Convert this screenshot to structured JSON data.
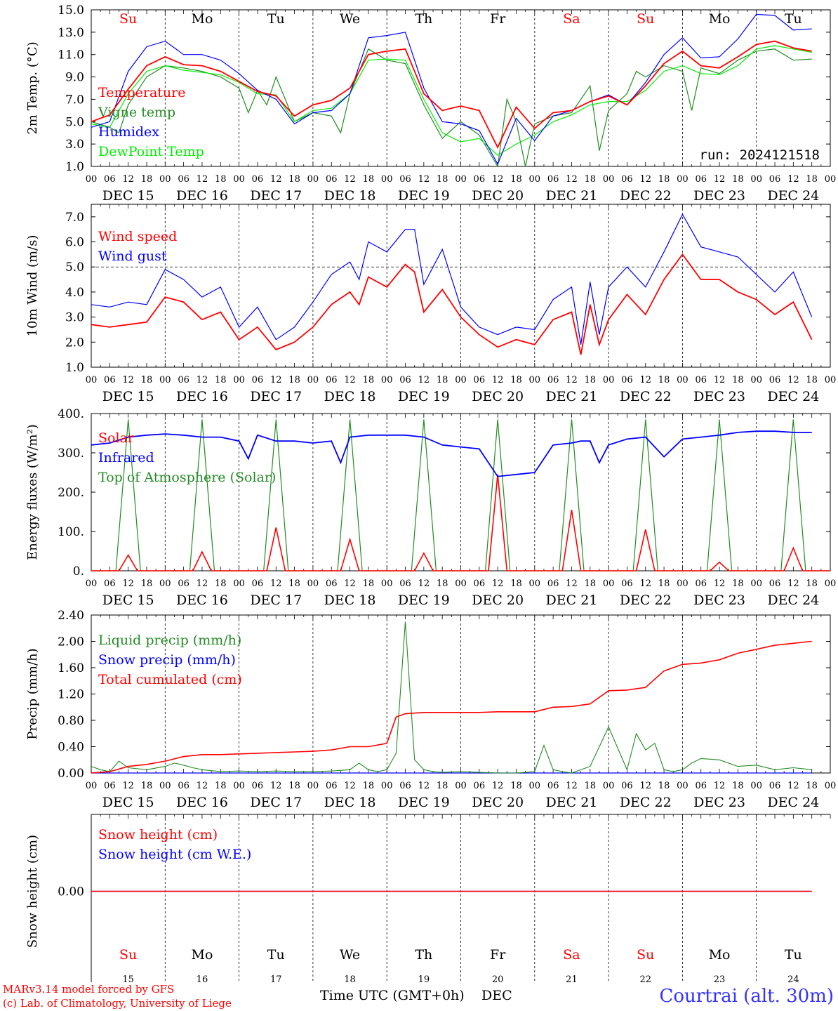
{
  "colors": {
    "temperature": "#ff0000",
    "vigne": "#228b22",
    "humidex": "#0000ff",
    "dewpoint": "#00ee00",
    "axis": "#000000",
    "station": "#3333ff"
  },
  "days": {
    "names": [
      "Su",
      "Mo",
      "Tu",
      "We",
      "Th",
      "Fr",
      "Sa",
      "Su",
      "Mo",
      "Tu"
    ],
    "weekend": [
      true,
      false,
      false,
      false,
      false,
      false,
      true,
      true,
      false,
      false
    ],
    "dates": [
      "DEC 15",
      "DEC 16",
      "DEC 17",
      "DEC 18",
      "DEC 19",
      "DEC 20",
      "DEC 21",
      "DEC 22",
      "DEC 23",
      "DEC 24"
    ],
    "nums": [
      "15",
      "16",
      "17",
      "18",
      "19",
      "20",
      "21",
      "22",
      "23",
      "24"
    ],
    "hours": [
      "00",
      "06",
      "12",
      "18"
    ],
    "hours_last": "00"
  },
  "footer": {
    "model_line1": "MARv3.14 model forced by GFS",
    "model_line2": "(c) Lab. of Climatology, University of Liege",
    "time_label": "Time UTC (GMT+0h)",
    "month": "DEC",
    "station": "Courtrai (alt. 30m)"
  },
  "chart_data": [
    {
      "type": "line",
      "ylabel": "2m Temp. (°C)",
      "ylim": [
        1.0,
        15.0
      ],
      "yticks": [
        "1.0",
        "3.0",
        "5.0",
        "7.0",
        "9.0",
        "11.0",
        "13.0",
        "15.0"
      ],
      "annotation": "run: 2024121518",
      "x_units": "hours since DEC 15 00 UTC",
      "series": [
        {
          "name": "Temperature",
          "color": "#ff0000",
          "x": [
            0,
            6,
            12,
            18,
            24,
            30,
            36,
            42,
            48,
            54,
            60,
            66,
            72,
            78,
            84,
            90,
            96,
            102,
            108,
            114,
            120,
            126,
            132,
            138,
            144,
            150,
            156,
            162,
            168,
            174,
            180,
            186,
            192,
            198,
            204,
            210,
            216,
            222,
            228,
            234
          ],
          "values": [
            5.0,
            5.6,
            7.9,
            10.0,
            10.8,
            10.1,
            10.0,
            9.5,
            8.6,
            7.7,
            7.3,
            5.5,
            6.5,
            6.9,
            8.0,
            11.0,
            11.3,
            11.5,
            7.5,
            6.0,
            6.4,
            6.0,
            2.7,
            6.3,
            4.4,
            5.8,
            6.0,
            6.8,
            7.3,
            6.5,
            8.2,
            10.2,
            11.3,
            10.0,
            9.8,
            10.8,
            11.9,
            12.2,
            11.6,
            11.3
          ]
        },
        {
          "name": "Vigne temp",
          "color": "#228b22",
          "x": [
            0,
            6,
            9,
            12,
            18,
            24,
            30,
            36,
            42,
            48,
            51,
            54,
            57,
            60,
            66,
            72,
            78,
            81,
            84,
            90,
            96,
            102,
            108,
            114,
            120,
            126,
            132,
            135,
            138,
            141,
            144,
            150,
            156,
            162,
            165,
            168,
            174,
            177,
            180,
            186,
            192,
            195,
            198,
            204,
            210,
            216,
            222,
            228,
            234
          ],
          "values": [
            5.0,
            4.5,
            4.0,
            6.5,
            9.0,
            10.0,
            9.8,
            9.5,
            9.0,
            8.0,
            5.8,
            7.8,
            6.5,
            9.0,
            5.0,
            5.8,
            5.5,
            4.0,
            7.5,
            11.5,
            10.5,
            10.2,
            6.5,
            3.5,
            5.0,
            3.8,
            0.5,
            7.0,
            5.0,
            1.0,
            4.8,
            5.5,
            5.8,
            8.2,
            2.4,
            6.0,
            7.5,
            9.5,
            9.0,
            10.0,
            9.5,
            6.0,
            9.8,
            9.3,
            10.5,
            11.3,
            11.5,
            10.5,
            10.6
          ]
        },
        {
          "name": "Humidex",
          "color": "#0000ff",
          "x": [
            0,
            6,
            12,
            18,
            24,
            30,
            36,
            42,
            48,
            54,
            60,
            66,
            72,
            78,
            84,
            90,
            96,
            102,
            108,
            114,
            120,
            126,
            132,
            138,
            144,
            150,
            156,
            162,
            168,
            174,
            180,
            186,
            192,
            198,
            204,
            210,
            216,
            222,
            228,
            234
          ],
          "values": [
            4.5,
            5.0,
            9.5,
            11.7,
            12.2,
            11.0,
            11.0,
            10.5,
            9.3,
            7.8,
            7.0,
            4.8,
            5.8,
            6.0,
            7.5,
            12.5,
            12.7,
            13.0,
            8.0,
            5.0,
            4.8,
            4.2,
            1.2,
            5.3,
            3.3,
            5.5,
            6.0,
            6.8,
            7.4,
            6.5,
            8.5,
            11.0,
            12.5,
            10.7,
            10.8,
            12.4,
            14.6,
            14.5,
            13.2,
            13.3
          ]
        },
        {
          "name": "DewPoint Temp",
          "color": "#00ee00",
          "x": [
            0,
            6,
            12,
            18,
            24,
            30,
            36,
            42,
            48,
            54,
            60,
            66,
            72,
            78,
            84,
            90,
            96,
            102,
            108,
            114,
            120,
            126,
            132,
            138,
            144,
            150,
            156,
            162,
            168,
            174,
            180,
            186,
            192,
            198,
            204,
            210,
            216,
            222,
            228,
            234
          ],
          "values": [
            4.8,
            4.5,
            7.5,
            9.5,
            10.0,
            9.6,
            9.4,
            9.2,
            8.5,
            7.5,
            7.4,
            5.0,
            6.0,
            6.2,
            7.5,
            10.5,
            10.6,
            10.5,
            7.0,
            4.0,
            3.2,
            3.5,
            2.0,
            3.0,
            3.8,
            5.0,
            5.6,
            6.5,
            6.8,
            6.8,
            7.8,
            9.5,
            10.0,
            9.3,
            9.2,
            10.0,
            11.5,
            11.8,
            11.5,
            11.2
          ]
        }
      ]
    },
    {
      "type": "line",
      "ylabel": "10m Wind (m/s)",
      "ylim": [
        1.0,
        7.5
      ],
      "yticks": [
        "1.0",
        "2.0",
        "3.0",
        "4.0",
        "5.0",
        "6.0",
        "7.0"
      ],
      "reference_line": 5.0,
      "series": [
        {
          "name": "Wind speed",
          "color": "#ff0000",
          "x": [
            0,
            6,
            12,
            18,
            24,
            30,
            36,
            42,
            48,
            54,
            60,
            66,
            72,
            78,
            84,
            87,
            90,
            96,
            102,
            105,
            108,
            114,
            120,
            126,
            132,
            138,
            144,
            150,
            156,
            159,
            162,
            165,
            168,
            174,
            180,
            186,
            192,
            198,
            204,
            210,
            216,
            222,
            228,
            234
          ],
          "values": [
            2.7,
            2.6,
            2.7,
            2.8,
            3.8,
            3.6,
            2.9,
            3.2,
            2.1,
            2.6,
            1.7,
            2.0,
            2.6,
            3.5,
            4.0,
            3.5,
            4.6,
            4.2,
            5.1,
            4.8,
            3.2,
            4.1,
            3.0,
            2.3,
            1.8,
            2.1,
            1.9,
            2.9,
            3.2,
            1.5,
            3.5,
            1.9,
            2.9,
            3.9,
            3.1,
            4.5,
            5.5,
            4.5,
            4.5,
            4.0,
            3.7,
            3.1,
            3.6,
            2.1
          ]
        },
        {
          "name": "Wind gust",
          "color": "#0000ff",
          "x": [
            0,
            6,
            12,
            18,
            24,
            30,
            36,
            42,
            48,
            54,
            60,
            66,
            72,
            78,
            84,
            87,
            90,
            96,
            102,
            105,
            108,
            114,
            120,
            126,
            132,
            138,
            144,
            150,
            156,
            159,
            162,
            165,
            168,
            174,
            180,
            186,
            192,
            198,
            204,
            210,
            216,
            222,
            228,
            234
          ],
          "values": [
            3.5,
            3.4,
            3.6,
            3.5,
            4.9,
            4.5,
            3.8,
            4.2,
            2.6,
            3.4,
            2.1,
            2.6,
            3.6,
            4.7,
            5.2,
            4.5,
            6.0,
            5.6,
            6.5,
            6.5,
            4.3,
            5.7,
            3.4,
            2.6,
            2.3,
            2.6,
            2.5,
            3.7,
            4.2,
            1.9,
            4.4,
            2.3,
            4.2,
            5.0,
            4.2,
            5.6,
            7.1,
            5.8,
            5.6,
            5.4,
            4.7,
            4.0,
            4.8,
            3.0
          ]
        }
      ]
    },
    {
      "type": "line",
      "ylabel": "Energy fluxes (W/m²)",
      "ylim": [
        0,
        400
      ],
      "yticks": [
        "0.",
        "100.",
        "200.",
        "300.",
        "400."
      ],
      "series": [
        {
          "name": "Solar",
          "color": "#ff0000",
          "peaks": [
            40,
            48,
            110,
            80,
            45,
            245,
            155,
            105,
            22,
            58
          ]
        },
        {
          "name": "Infrared",
          "color": "#0000ff",
          "x": [
            0,
            6,
            12,
            18,
            24,
            30,
            36,
            42,
            48,
            51,
            54,
            60,
            66,
            72,
            78,
            81,
            84,
            90,
            96,
            102,
            108,
            114,
            120,
            126,
            132,
            138,
            144,
            150,
            156,
            159,
            162,
            165,
            168,
            174,
            180,
            186,
            192,
            198,
            204,
            210,
            216,
            222,
            228,
            234
          ],
          "values": [
            320,
            325,
            340,
            345,
            348,
            345,
            340,
            340,
            330,
            285,
            345,
            330,
            330,
            325,
            330,
            275,
            340,
            345,
            345,
            345,
            340,
            320,
            315,
            310,
            240,
            245,
            250,
            320,
            325,
            330,
            330,
            275,
            320,
            335,
            340,
            290,
            335,
            340,
            345,
            352,
            355,
            355,
            352,
            352
          ]
        },
        {
          "name": "Top of Atmosphere (Solar)",
          "color": "#228b22",
          "peak": 385
        }
      ]
    },
    {
      "type": "line",
      "ylabel": "Precip (mm/h)",
      "ylim": [
        0.0,
        2.4
      ],
      "yticks": [
        "0.00",
        "0.40",
        "0.80",
        "1.20",
        "1.60",
        "2.00",
        "2.40"
      ],
      "series": [
        {
          "name": "Liquid precip (mm/h)",
          "color": "#228b22",
          "x": [
            0,
            3,
            6,
            9,
            12,
            18,
            24,
            27,
            30,
            33,
            36,
            42,
            48,
            54,
            60,
            66,
            72,
            78,
            84,
            87,
            90,
            93,
            96,
            99,
            102,
            105,
            108,
            111,
            114,
            120,
            126,
            132,
            138,
            144,
            147,
            150,
            153,
            156,
            162,
            168,
            174,
            177,
            180,
            183,
            186,
            189,
            192,
            195,
            198,
            204,
            210,
            216,
            222,
            228,
            234
          ],
          "values": [
            0.1,
            0.05,
            0.02,
            0.18,
            0.08,
            0.05,
            0.1,
            0.15,
            0.12,
            0.08,
            0.05,
            0.02,
            0.03,
            0.02,
            0.03,
            0.02,
            0.02,
            0.03,
            0.05,
            0.15,
            0.05,
            0.02,
            0.05,
            0.3,
            2.3,
            0.2,
            0.05,
            0.02,
            0.01,
            0.02,
            0.01,
            0.0,
            0.0,
            0.02,
            0.42,
            0.05,
            0.02,
            0.0,
            0.1,
            0.7,
            0.05,
            0.6,
            0.35,
            0.45,
            0.05,
            0.02,
            0.05,
            0.15,
            0.22,
            0.2,
            0.1,
            0.12,
            0.05,
            0.08,
            0.05
          ]
        },
        {
          "name": "Snow precip (mm/h)",
          "color": "#0000ff",
          "x": [
            0,
            234
          ],
          "values": [
            0,
            0
          ]
        },
        {
          "name": "Total cumulated (cm)",
          "color": "#ff0000",
          "x": [
            0,
            6,
            12,
            18,
            24,
            30,
            36,
            42,
            48,
            54,
            60,
            66,
            72,
            78,
            84,
            90,
            96,
            99,
            102,
            105,
            108,
            114,
            120,
            126,
            132,
            138,
            144,
            150,
            156,
            162,
            168,
            174,
            180,
            186,
            192,
            198,
            204,
            210,
            216,
            222,
            228,
            234
          ],
          "values": [
            0.0,
            0.02,
            0.1,
            0.13,
            0.18,
            0.25,
            0.28,
            0.28,
            0.29,
            0.3,
            0.31,
            0.32,
            0.33,
            0.35,
            0.4,
            0.4,
            0.45,
            0.85,
            0.9,
            0.91,
            0.92,
            0.92,
            0.92,
            0.92,
            0.93,
            0.93,
            0.93,
            1.0,
            1.01,
            1.05,
            1.25,
            1.26,
            1.3,
            1.55,
            1.65,
            1.67,
            1.72,
            1.82,
            1.88,
            1.94,
            1.97,
            2.0
          ]
        }
      ]
    },
    {
      "type": "line",
      "ylabel": "Snow height (cm)",
      "yticks": [
        "0.00"
      ],
      "series": [
        {
          "name": "Snow height (cm)",
          "color": "#ff0000",
          "x": [
            0,
            234
          ],
          "values": [
            0,
            0
          ]
        },
        {
          "name": "Snow height (cm W.E.)",
          "color": "#0000ff",
          "x": [
            0,
            234
          ],
          "values": [
            0,
            0
          ]
        }
      ]
    }
  ]
}
